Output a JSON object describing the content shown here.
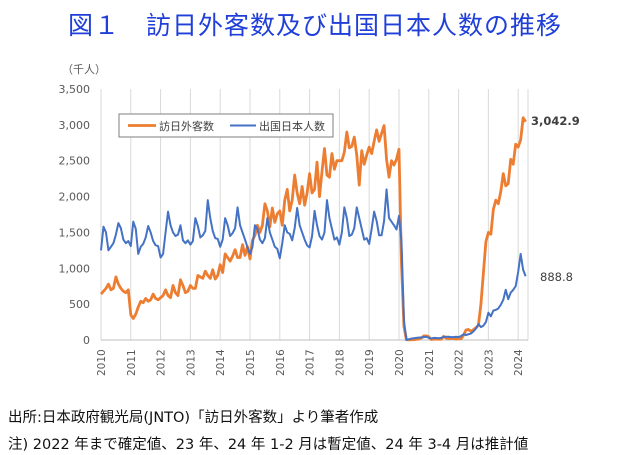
{
  "title": "図１　訪日外客数及び出国日本人数の推移",
  "notes": {
    "source": "出所:日本政府観光局(JNTO)「訪日外客数」より筆者作成",
    "remark": "注) 2022 年まで確定値、23 年、24 年 1-2 月は暫定値、24 年 3-4 月は推計値"
  },
  "chart_data": {
    "type": "line",
    "unit_label": "（千人）",
    "xlabel": "",
    "ylabel": "",
    "ylim": [
      0,
      3500
    ],
    "xlim": [
      2010,
      2024.33
    ],
    "yticks": [
      0,
      500,
      1000,
      1500,
      2000,
      2500,
      3000,
      3500
    ],
    "ytick_labels": [
      "0",
      "500",
      "1,000",
      "1,500",
      "2,000",
      "2,500",
      "3,000",
      "3,500"
    ],
    "xticks": [
      2010,
      2011,
      2012,
      2013,
      2014,
      2015,
      2016,
      2017,
      2018,
      2019,
      2020,
      2021,
      2022,
      2023,
      2024
    ],
    "xtick_labels": [
      "2010",
      "2011",
      "2012",
      "2013",
      "2014",
      "2015",
      "2016",
      "2017",
      "2018",
      "2019",
      "2020",
      "2021",
      "2022",
      "2023",
      "2024"
    ],
    "grid": "vertical",
    "legend": "top-left",
    "series": [
      {
        "name": "訪日外客数",
        "color": "#ED7D31",
        "end_label": "3,042.9",
        "values": [
          640,
          680,
          720,
          780,
          700,
          720,
          880,
          780,
          720,
          680,
          660,
          700,
          350,
          300,
          360,
          460,
          540,
          520,
          580,
          540,
          560,
          640,
          580,
          560,
          590,
          620,
          700,
          620,
          590,
          760,
          660,
          620,
          840,
          760,
          660,
          680,
          760,
          720,
          720,
          900,
          880,
          860,
          960,
          900,
          860,
          980,
          850,
          900,
          1050,
          940,
          1200,
          1150,
          1100,
          1170,
          1260,
          1150,
          1150,
          1330,
          1180,
          1300,
          1130,
          1390,
          1460,
          1600,
          1500,
          1600,
          1900,
          1800,
          1580,
          1840,
          1640,
          1760,
          1800,
          1600,
          1950,
          2100,
          1800,
          1950,
          2300,
          2050,
          1900,
          2140,
          1880,
          2050,
          2320,
          2050,
          2100,
          2480,
          2000,
          2350,
          2670,
          2300,
          2270,
          2600,
          2380,
          2500,
          2500,
          2500,
          2620,
          2900,
          2680,
          2700,
          2830,
          2580,
          2160,
          2640,
          2450,
          2580,
          2690,
          2600,
          2770,
          2930,
          2770,
          2880,
          2990,
          2520,
          2270,
          2500,
          2440,
          2520,
          2660,
          1080,
          190,
          3,
          2,
          3,
          4,
          9,
          14,
          28,
          57,
          58,
          46,
          7,
          12,
          11,
          10,
          10,
          51,
          26,
          18,
          22,
          21,
          12,
          18,
          17,
          66,
          139,
          147,
          121,
          145,
          170,
          207,
          499,
          934,
          1370,
          1500,
          1475,
          1820,
          1950,
          1900,
          2070,
          2320,
          2150,
          2180,
          2520,
          2450,
          2730,
          2690,
          2790,
          3100,
          3043
        ]
      },
      {
        "name": "出国日本人数",
        "color": "#4472C4",
        "end_label": "888.8",
        "values": [
          1250,
          1580,
          1500,
          1250,
          1300,
          1350,
          1470,
          1630,
          1560,
          1400,
          1350,
          1380,
          1310,
          1650,
          1550,
          1200,
          1300,
          1340,
          1430,
          1590,
          1500,
          1380,
          1320,
          1310,
          1150,
          1200,
          1500,
          1790,
          1600,
          1500,
          1450,
          1470,
          1600,
          1390,
          1350,
          1390,
          1330,
          1380,
          1700,
          1590,
          1430,
          1460,
          1520,
          1950,
          1700,
          1520,
          1420,
          1410,
          1300,
          1400,
          1700,
          1600,
          1450,
          1490,
          1560,
          1850,
          1600,
          1500,
          1400,
          1290,
          1200,
          1300,
          1600,
          1550,
          1400,
          1350,
          1420,
          1700,
          1500,
          1400,
          1300,
          1270,
          1140,
          1350,
          1600,
          1500,
          1480,
          1390,
          1560,
          1840,
          1600,
          1500,
          1400,
          1320,
          1290,
          1450,
          1800,
          1600,
          1450,
          1400,
          1500,
          1950,
          1700,
          1550,
          1400,
          1430,
          1330,
          1500,
          1850,
          1700,
          1450,
          1470,
          1560,
          1850,
          1700,
          1550,
          1400,
          1420,
          1340,
          1550,
          1790,
          1660,
          1460,
          1460,
          1660,
          2100,
          1700,
          1650,
          1600,
          1540,
          1730,
          1380,
          270,
          4,
          10,
          20,
          25,
          30,
          34,
          35,
          40,
          45,
          30,
          20,
          30,
          28,
          25,
          30,
          40,
          45,
          45,
          40,
          40,
          45,
          40,
          55,
          80,
          70,
          80,
          90,
          120,
          160,
          220,
          180,
          200,
          250,
          380,
          330,
          410,
          420,
          440,
          490,
          560,
          700,
          570,
          660,
          700,
          750,
          950,
          1200,
          980,
          889
        ]
      }
    ]
  }
}
